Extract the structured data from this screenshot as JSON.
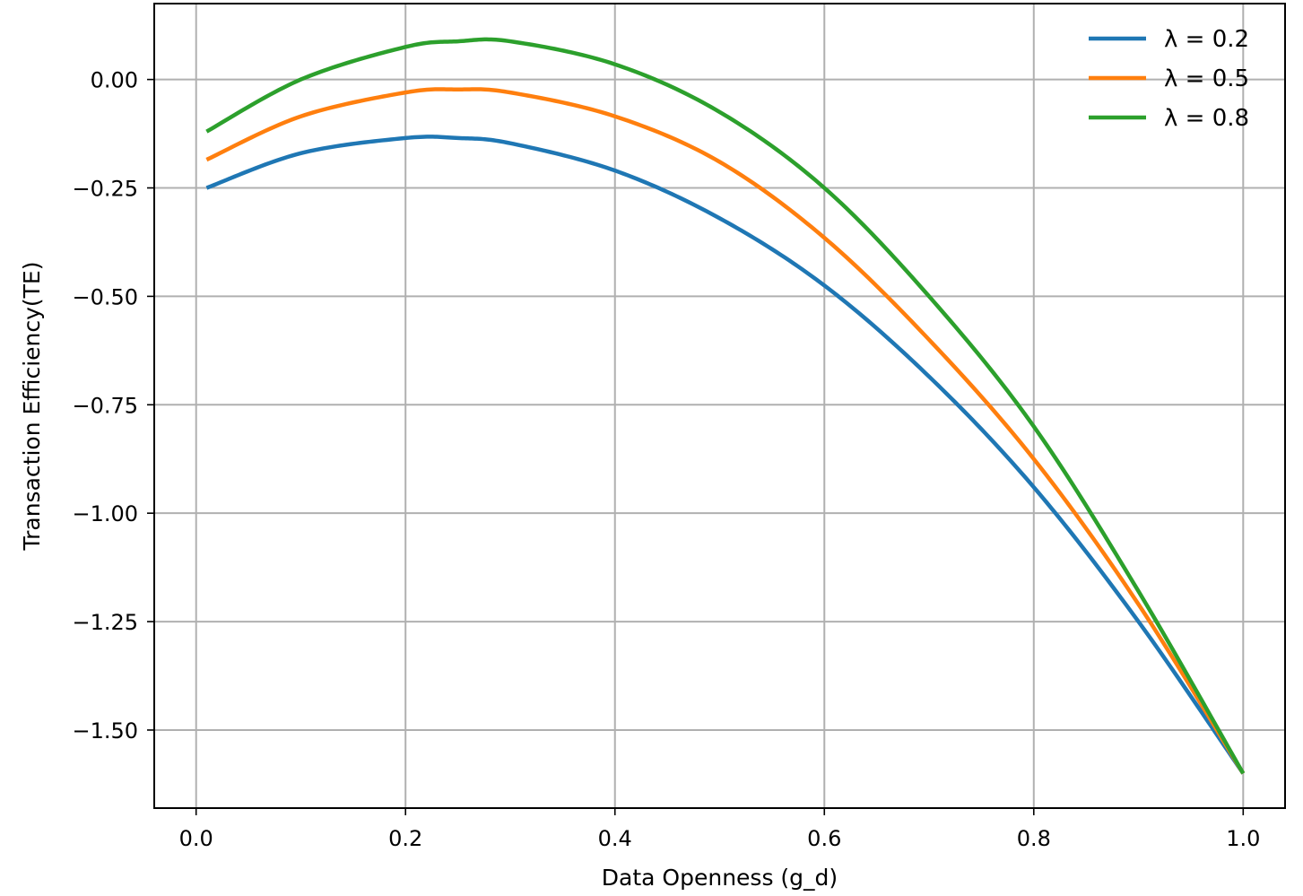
{
  "chart_data": {
    "type": "line",
    "title": "",
    "xlabel": "Data Openness (g_d)",
    "ylabel": "Transaction Efficiency(TE)",
    "xlim": [
      -0.04,
      1.04
    ],
    "ylim": [
      -1.68,
      0.175
    ],
    "xticks": [
      0.0,
      0.2,
      0.4,
      0.6,
      0.8,
      1.0
    ],
    "xtick_labels": [
      "0.0",
      "0.2",
      "0.4",
      "0.6",
      "0.8",
      "1.0"
    ],
    "yticks": [
      0.0,
      -0.25,
      -0.5,
      -0.75,
      -1.0,
      -1.25,
      -1.5
    ],
    "ytick_labels": [
      "0.00",
      "−0.25",
      "−0.50",
      "−0.75",
      "−1.00",
      "−1.25",
      "−1.50"
    ],
    "grid": true,
    "legend_position": "top-right",
    "x": [
      0.01,
      0.1,
      0.2,
      0.25,
      0.3,
      0.4,
      0.5,
      0.6,
      0.7,
      0.8,
      0.9,
      1.0
    ],
    "series": [
      {
        "name": "λ = 0.2",
        "color": "#1f77b4",
        "values": [
          -0.25,
          -0.17,
          -0.135,
          -0.135,
          -0.147,
          -0.21,
          -0.32,
          -0.475,
          -0.685,
          -0.94,
          -1.25,
          -1.6
        ]
      },
      {
        "name": "λ = 0.5",
        "color": "#ff7f0e",
        "values": [
          -0.185,
          -0.085,
          -0.03,
          -0.023,
          -0.03,
          -0.085,
          -0.19,
          -0.365,
          -0.6,
          -0.875,
          -1.21,
          -1.6
        ]
      },
      {
        "name": "λ = 0.8",
        "color": "#2ca02c",
        "values": [
          -0.12,
          0.0,
          0.075,
          0.088,
          0.088,
          0.035,
          -0.075,
          -0.25,
          -0.5,
          -0.8,
          -1.18,
          -1.6
        ]
      }
    ]
  }
}
